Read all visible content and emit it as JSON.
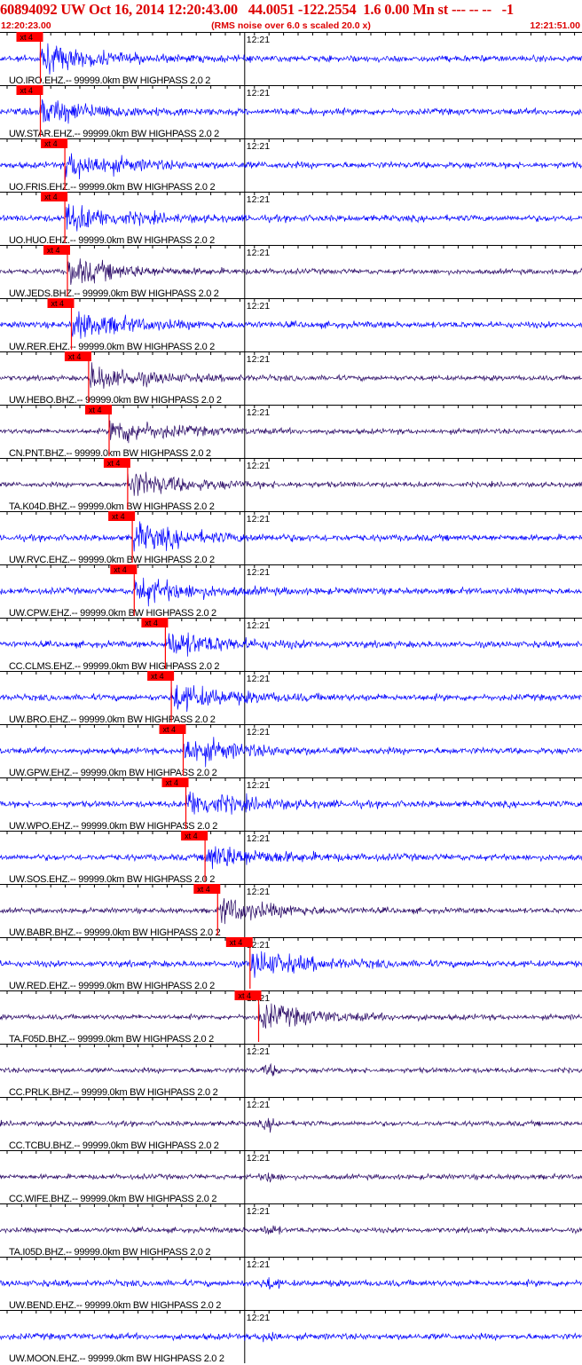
{
  "header": {
    "title": "60894092 UW Oct 16, 2014 12:20:43.00   44.0051 -122.2554  1.6 0.00 Mn st --- -- --   -1",
    "start_time": "12:20:23.00",
    "rms_note": "(RMS noise over 6.0 s scaled 20.0 x)",
    "end_time": "12:21:51.00"
  },
  "colors": {
    "title_red": "#dd0000",
    "trace_blue": "#0000ff",
    "trace_navy": "#2a0a66",
    "pick_red": "#ff0000",
    "grid_black": "#000000"
  },
  "chart_data": {
    "type": "line",
    "x_unit": "time",
    "x_range": [
      "12:20:23.00",
      "12:21:51.00"
    ],
    "x_tick_label": "12:21",
    "pick_label": "xt 4",
    "traces": [
      {
        "label": "UO.IRO.EHZ.-- 99999.0km BW  HIGHPASS  2.0  2",
        "pick_time": "12:20:29.1",
        "color": "blue"
      },
      {
        "label": "UW.STAR.EHZ.-- 99999.0km BW  HIGHPASS  2.0  2",
        "pick_time": "12:20:29.1",
        "color": "blue"
      },
      {
        "label": "UO.FRIS.EHZ.-- 99999.0km BW  HIGHPASS  2.0  2",
        "pick_time": "12:20:32.8",
        "color": "blue"
      },
      {
        "label": "UO.HUO.EHZ.-- 99999.0km BW  HIGHPASS  2.0  2",
        "pick_time": "12:20:32.8",
        "color": "blue"
      },
      {
        "label": "UW.JEDS.BHZ.-- 99999.0km BW  HIGHPASS  2.0  2",
        "pick_time": "12:20:33.2",
        "color": "navy"
      },
      {
        "label": "UW.RER.EHZ.-- 99999.0km BW  HIGHPASS  2.0  2",
        "pick_time": "12:20:33.8",
        "color": "blue"
      },
      {
        "label": "UW.HEBO.BHZ.-- 99999.0km BW  HIGHPASS  2.0  2",
        "pick_time": "12:20:36.4",
        "color": "navy"
      },
      {
        "label": "CN.PNT.BHZ.-- 99999.0km BW  HIGHPASS  2.0  2",
        "pick_time": "12:20:39.5",
        "color": "navy"
      },
      {
        "label": "TA.K04D.BHZ.-- 99999.0km BW  HIGHPASS  2.0  2",
        "pick_time": "12:20:42.3",
        "color": "navy"
      },
      {
        "label": "UW.RVC.EHZ.-- 99999.0km BW  HIGHPASS  2.0  2",
        "pick_time": "12:20:43.0",
        "color": "blue"
      },
      {
        "label": "UW.CPW.EHZ.-- 99999.0km BW  HIGHPASS  2.0  2",
        "pick_time": "12:20:43.3",
        "color": "blue"
      },
      {
        "label": "CC.CLMS.EHZ.-- 99999.0km BW  HIGHPASS  2.0  2",
        "pick_time": "12:20:48.0",
        "color": "blue"
      },
      {
        "label": "UW.BRO.EHZ.-- 99999.0km BW  HIGHPASS  2.0  2",
        "pick_time": "12:20:48.9",
        "color": "blue"
      },
      {
        "label": "UW.GPW.EHZ.-- 99999.0km BW  HIGHPASS  2.0  2",
        "pick_time": "12:20:50.7",
        "color": "blue"
      },
      {
        "label": "UW.WPO.EHZ.-- 99999.0km BW  HIGHPASS  2.0  2",
        "pick_time": "12:20:51.1",
        "color": "blue"
      },
      {
        "label": "UW.SOS.EHZ.-- 99999.0km BW  HIGHPASS  2.0  2",
        "pick_time": "12:20:54.0",
        "color": "blue"
      },
      {
        "label": "UW.BABR.BHZ.-- 99999.0km BW  HIGHPASS  2.0  2",
        "pick_time": "12:20:55.9",
        "color": "navy"
      },
      {
        "label": "UW.RED.EHZ.-- 99999.0km BW  HIGHPASS  2.0  2",
        "pick_time": "12:21:00.8",
        "color": "blue"
      },
      {
        "label": "TA.F05D.BHZ.-- 99999.0km BW  HIGHPASS  2.0  2",
        "pick_time": "12:21:02.1",
        "color": "navy"
      },
      {
        "label": "CC.PRLK.BHZ.-- 99999.0km BW  HIGHPASS  2.0  2",
        "pick_time": null,
        "color": "navy"
      },
      {
        "label": "CC.TCBU.BHZ.-- 99999.0km BW  HIGHPASS  2.0  2",
        "pick_time": null,
        "color": "navy"
      },
      {
        "label": "CC.WIFE.BHZ.-- 99999.0km BW  HIGHPASS  2.0  2",
        "pick_time": null,
        "color": "navy"
      },
      {
        "label": "TA.I05D.BHZ.-- 99999.0km BW  HIGHPASS  2.0  2",
        "pick_time": null,
        "color": "navy"
      },
      {
        "label": "UW.BEND.EHZ.-- 99999.0km BW  HIGHPASS  2.0  2",
        "pick_time": null,
        "color": "blue"
      },
      {
        "label": "UW.MOON.EHZ.-- 99999.0km BW  HIGHPASS  2.0  2",
        "pick_time": null,
        "color": "blue"
      }
    ]
  }
}
